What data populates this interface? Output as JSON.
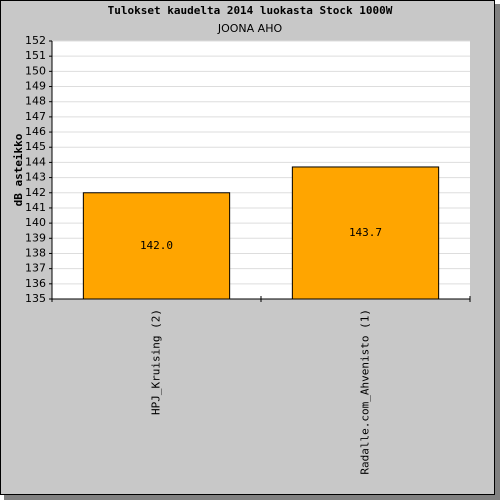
{
  "chart_data": {
    "type": "bar",
    "title": "Tulokset kaudelta 2014 luokasta Stock 1000W",
    "subtitle": "JOONA AHO",
    "y_label": "dB asteikko",
    "categories": [
      "HPJ_Kruising (2)",
      "Radalle.com_Ahvenisto (1)"
    ],
    "values": [
      142.0,
      143.7
    ],
    "value_labels": [
      "142.0",
      "143.7"
    ],
    "color": "#ffa500",
    "ylim": [
      135,
      152
    ],
    "yticks": [
      135,
      136,
      137,
      138,
      139,
      140,
      141,
      142,
      143,
      144,
      145,
      146,
      147,
      148,
      149,
      150,
      151,
      152
    ],
    "grid": true
  }
}
